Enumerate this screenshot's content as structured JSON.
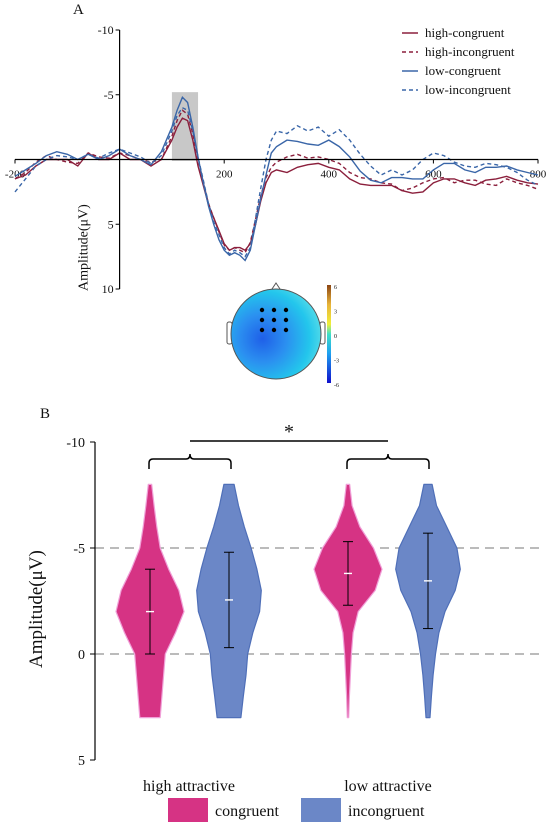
{
  "panel_labels": {
    "a": "A",
    "b": "B"
  },
  "chart_data": [
    {
      "type": "line",
      "panel": "A",
      "ylabel": "Amplitude(μV)",
      "y_inverted": true,
      "xlim": [
        -200,
        800
      ],
      "ylim": [
        -10,
        10
      ],
      "x_ticks": [
        -200,
        200,
        400,
        600,
        800
      ],
      "y_ticks": [
        -10,
        -5,
        5,
        10
      ],
      "highlight_window": [
        100,
        150
      ],
      "legend_position": "top-right",
      "x": [
        -200,
        -180,
        -160,
        -140,
        -120,
        -100,
        -80,
        -60,
        -40,
        -20,
        0,
        20,
        40,
        60,
        80,
        100,
        110,
        120,
        130,
        140,
        150,
        160,
        170,
        180,
        190,
        200,
        210,
        220,
        230,
        240,
        250,
        260,
        270,
        280,
        290,
        300,
        320,
        340,
        360,
        380,
        400,
        420,
        440,
        460,
        480,
        500,
        520,
        540,
        560,
        580,
        600,
        620,
        640,
        660,
        680,
        700,
        720,
        740,
        760,
        780,
        800
      ],
      "series": [
        {
          "name": "high-congruent",
          "color": "#8b1f3c",
          "dash": false,
          "values": [
            1.5,
            1.2,
            0.5,
            0.0,
            0.0,
            0.0,
            0.5,
            -0.5,
            0.0,
            0.0,
            -0.5,
            0.0,
            0.0,
            0.5,
            0.0,
            -1.5,
            -2.5,
            -3.2,
            -3.0,
            -1.5,
            0.5,
            2.0,
            3.5,
            4.5,
            5.5,
            6.5,
            7.0,
            6.8,
            6.8,
            7.0,
            6.5,
            5.0,
            3.2,
            1.8,
            1.0,
            0.8,
            1.0,
            0.6,
            0.4,
            0.3,
            0.6,
            0.8,
            1.5,
            1.9,
            2.0,
            2.0,
            2.0,
            2.4,
            2.6,
            2.5,
            1.8,
            1.5,
            1.5,
            1.8,
            2.0,
            1.6,
            1.5,
            1.3,
            1.6,
            1.8,
            1.9
          ]
        },
        {
          "name": "high-incongruent",
          "color": "#8b1f3c",
          "dash": true,
          "values": [
            1.5,
            1.0,
            0.2,
            -0.3,
            0.0,
            0.2,
            0.3,
            -0.5,
            -0.2,
            -0.1,
            -0.5,
            -0.3,
            0.0,
            0.2,
            0.0,
            -1.8,
            -3.0,
            -3.8,
            -3.5,
            -2.0,
            0.0,
            1.8,
            3.4,
            4.5,
            5.6,
            6.6,
            7.0,
            6.8,
            7.0,
            7.2,
            6.4,
            4.6,
            2.8,
            1.4,
            0.6,
            0.2,
            -0.2,
            -0.4,
            -0.1,
            -0.2,
            0.0,
            0.3,
            1.0,
            1.4,
            1.5,
            1.8,
            1.9,
            2.4,
            2.2,
            1.8,
            1.5,
            1.4,
            1.8,
            1.6,
            1.6,
            1.9,
            2.0,
            1.5,
            1.8,
            2.0,
            2.3
          ]
        },
        {
          "name": "low-congruent",
          "color": "#3a66a8",
          "dash": false,
          "values": [
            1.3,
            0.8,
            0.3,
            -0.3,
            -0.6,
            -0.4,
            0.0,
            -0.4,
            0.0,
            -0.3,
            -0.8,
            -0.3,
            0.0,
            0.4,
            -0.6,
            -2.5,
            -3.8,
            -4.8,
            -4.4,
            -2.5,
            -0.2,
            1.8,
            3.6,
            5.0,
            6.2,
            7.0,
            7.4,
            7.2,
            7.4,
            7.8,
            7.0,
            5.0,
            3.0,
            1.2,
            -0.5,
            -1.0,
            -1.5,
            -1.4,
            -1.2,
            -1.1,
            -1.5,
            -1.0,
            -0.2,
            0.9,
            1.6,
            1.8,
            1.4,
            1.4,
            1.5,
            1.5,
            0.8,
            0.3,
            0.3,
            0.8,
            1.0,
            0.6,
            0.6,
            0.5,
            0.8,
            1.0,
            1.2
          ]
        },
        {
          "name": "low-incongruent",
          "color": "#3a66a8",
          "dash": true,
          "values": [
            2.5,
            1.5,
            0.5,
            0.0,
            -0.3,
            -0.2,
            0.0,
            -0.4,
            -0.1,
            -0.5,
            -0.8,
            -0.5,
            -0.2,
            0.3,
            -0.3,
            -2.2,
            -3.4,
            -4.0,
            -3.8,
            -2.2,
            -0.2,
            1.6,
            3.4,
            4.8,
            5.8,
            6.8,
            7.3,
            7.0,
            7.2,
            7.5,
            6.8,
            4.5,
            2.2,
            0.0,
            -1.5,
            -2.2,
            -2.0,
            -2.6,
            -2.2,
            -2.5,
            -1.8,
            -2.3,
            -1.5,
            -0.4,
            0.5,
            1.2,
            0.8,
            1.2,
            0.8,
            0.0,
            -0.5,
            -0.3,
            0.2,
            0.5,
            0.6,
            0.3,
            0.4,
            0.6,
            1.0,
            1.6,
            2.0
          ]
        }
      ]
    },
    {
      "type": "violin",
      "panel": "B",
      "ylabel": "Amplitude(μV)",
      "y_inverted": true,
      "ylim": [
        -10,
        5
      ],
      "y_ticks": [
        -10,
        -5,
        0,
        5
      ],
      "reference_lines": [
        -5,
        0
      ],
      "categories": [
        "high attractive",
        "low attractive"
      ],
      "series": [
        {
          "name": "congruent",
          "color": "#d63384"
        },
        {
          "name": "incongruent",
          "color": "#6b87c7"
        }
      ],
      "violins": [
        {
          "category": "high attractive",
          "series": "congruent",
          "min": -8,
          "max": 3,
          "mean": -2.0,
          "err_low": 0.0,
          "err_high": -4.0,
          "profile": [
            [
              -8,
              0.05
            ],
            [
              -7,
              0.12
            ],
            [
              -6,
              0.2
            ],
            [
              -5,
              0.3
            ],
            [
              -4,
              0.55
            ],
            [
              -3,
              0.85
            ],
            [
              -2,
              1.0
            ],
            [
              -1,
              0.75
            ],
            [
              0,
              0.45
            ],
            [
              1,
              0.4
            ],
            [
              2,
              0.35
            ],
            [
              3,
              0.3
            ]
          ]
        },
        {
          "category": "high attractive",
          "series": "incongruent",
          "min": -8,
          "max": 3,
          "mean": -2.55,
          "err_low": -0.3,
          "err_high": -4.8,
          "profile": [
            [
              -8,
              0.15
            ],
            [
              -7,
              0.28
            ],
            [
              -6,
              0.45
            ],
            [
              -5,
              0.65
            ],
            [
              -4,
              0.82
            ],
            [
              -3,
              0.95
            ],
            [
              -2,
              0.9
            ],
            [
              -1,
              0.7
            ],
            [
              0,
              0.55
            ],
            [
              1,
              0.5
            ],
            [
              2,
              0.42
            ],
            [
              3,
              0.35
            ]
          ]
        },
        {
          "category": "low attractive",
          "series": "congruent",
          "min": -8,
          "max": 3,
          "mean": -3.8,
          "err_low": -2.3,
          "err_high": -5.3,
          "profile": [
            [
              -8,
              0.05
            ],
            [
              -7,
              0.12
            ],
            [
              -6,
              0.35
            ],
            [
              -5,
              0.75
            ],
            [
              -4,
              1.0
            ],
            [
              -3,
              0.8
            ],
            [
              -2,
              0.3
            ],
            [
              -1,
              0.15
            ],
            [
              0,
              0.1
            ],
            [
              1,
              0.07
            ],
            [
              2,
              0.04
            ],
            [
              3,
              0.02
            ]
          ]
        },
        {
          "category": "low attractive",
          "series": "incongruent",
          "min": -8,
          "max": 3,
          "mean": -3.45,
          "err_low": -1.2,
          "err_high": -5.7,
          "profile": [
            [
              -8,
              0.12
            ],
            [
              -7,
              0.25
            ],
            [
              -6,
              0.55
            ],
            [
              -5,
              0.85
            ],
            [
              -4,
              0.95
            ],
            [
              -3,
              0.8
            ],
            [
              -2,
              0.5
            ],
            [
              -1,
              0.32
            ],
            [
              0,
              0.22
            ],
            [
              1,
              0.15
            ],
            [
              2,
              0.1
            ],
            [
              3,
              0.06
            ]
          ]
        }
      ],
      "significance": "*",
      "legend_position": "bottom"
    }
  ],
  "topomap": {
    "colorbar_ticks": [
      "6",
      "3",
      "0",
      "-3",
      "-6"
    ],
    "colors": {
      "positive": "#8b4513",
      "mid": "#00e0e0",
      "negative": "#1010cc"
    },
    "electrode_grid": "3x3",
    "electrode_count": 9
  }
}
